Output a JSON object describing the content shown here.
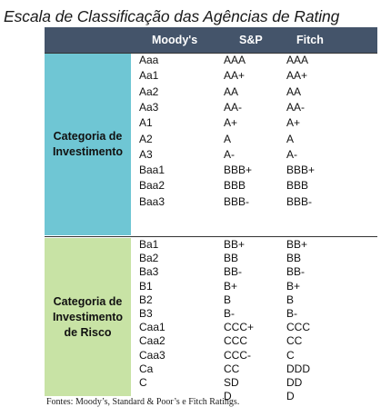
{
  "title": "Escala de Classificação das Agências de Rating",
  "table": {
    "headers": {
      "category": "",
      "moodys": "Moody's",
      "sp": "S&P",
      "fitch": "Fitch"
    },
    "groups": [
      {
        "label": "Categoria de Investimento",
        "color": "#6fc6d4",
        "rows": [
          {
            "moodys": "Aaa",
            "sp": "AAA",
            "fitch": "AAA"
          },
          {
            "moodys": "Aa1",
            "sp": "AA+",
            "fitch": "AA+"
          },
          {
            "moodys": "Aa2",
            "sp": "AA",
            "fitch": "AA"
          },
          {
            "moodys": "Aa3",
            "sp": "AA-",
            "fitch": "AA-"
          },
          {
            "moodys": "A1",
            "sp": "A+",
            "fitch": "A+"
          },
          {
            "moodys": "A2",
            "sp": "A",
            "fitch": "A"
          },
          {
            "moodys": "A3",
            "sp": "A-",
            "fitch": "A-"
          },
          {
            "moodys": "Baa1",
            "sp": "BBB+",
            "fitch": "BBB+"
          },
          {
            "moodys": "Baa2",
            "sp": "BBB",
            "fitch": "BBB"
          },
          {
            "moodys": "Baa3",
            "sp": "BBB-",
            "fitch": "BBB-"
          }
        ]
      },
      {
        "label": "Categoria de Investimento de Risco",
        "color": "#c8e3a5",
        "rows": [
          {
            "moodys": "Ba1",
            "sp": "BB+",
            "fitch": "BB+"
          },
          {
            "moodys": "Ba2",
            "sp": "BB",
            "fitch": "BB"
          },
          {
            "moodys": "Ba3",
            "sp": "BB-",
            "fitch": "BB-"
          },
          {
            "moodys": "B1",
            "sp": "B+",
            "fitch": "B+"
          },
          {
            "moodys": "B2",
            "sp": "B",
            "fitch": "B"
          },
          {
            "moodys": "B3",
            "sp": "B-",
            "fitch": "B-"
          },
          {
            "moodys": "Caa1",
            "sp": "CCC+",
            "fitch": "CCC"
          },
          {
            "moodys": "Caa2",
            "sp": "CCC",
            "fitch": "CC"
          },
          {
            "moodys": "Caa3",
            "sp": "CCC-",
            "fitch": "C"
          },
          {
            "moodys": "Ca",
            "sp": "CC",
            "fitch": "DDD"
          },
          {
            "moodys": "C",
            "sp": "SD",
            "fitch": "DD"
          },
          {
            "moodys": "",
            "sp": "D",
            "fitch": "D"
          }
        ]
      }
    ],
    "header_color": "#44546a"
  },
  "footer": "Fontes: Moody’s, Standard & Poor’s e Fitch Ratings."
}
